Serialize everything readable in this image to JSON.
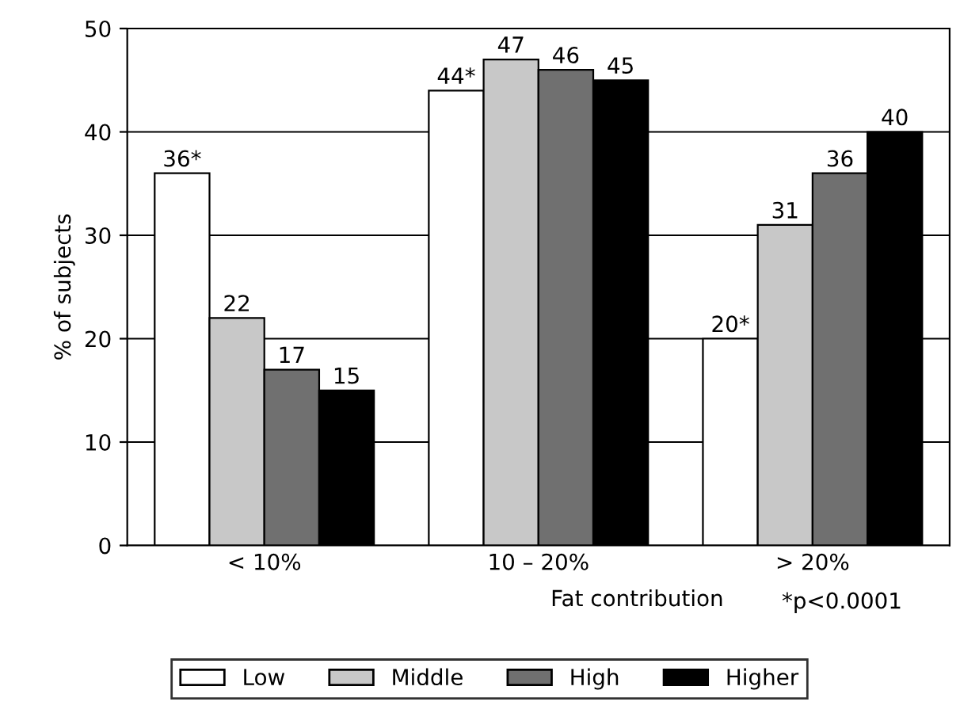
{
  "chart_data": {
    "type": "bar",
    "xlabel": "Fat contribution",
    "ylabel": "% of subjects",
    "categories": [
      "< 10%",
      "10 – 20%",
      "> 20%"
    ],
    "series": [
      {
        "name": "Low",
        "color": "#ffffff",
        "values": [
          36,
          44,
          20
        ],
        "value_labels": [
          "36*",
          "44*",
          "20*"
        ]
      },
      {
        "name": "Middle",
        "color": "#c8c8c8",
        "values": [
          22,
          47,
          31
        ],
        "value_labels": [
          "22",
          "47",
          "31"
        ]
      },
      {
        "name": "High",
        "color": "#707070",
        "values": [
          17,
          46,
          36
        ],
        "value_labels": [
          "17",
          "46",
          "36"
        ]
      },
      {
        "name": "Higher",
        "color": "#000000",
        "values": [
          15,
          45,
          40
        ],
        "value_labels": [
          "15",
          "45",
          "40"
        ]
      }
    ],
    "ylim": [
      0,
      50
    ],
    "yticks": [
      0,
      10,
      20,
      30,
      40,
      50
    ],
    "grid": "y",
    "legend": "bottom",
    "annotations": [
      "*p<0.0001"
    ]
  }
}
